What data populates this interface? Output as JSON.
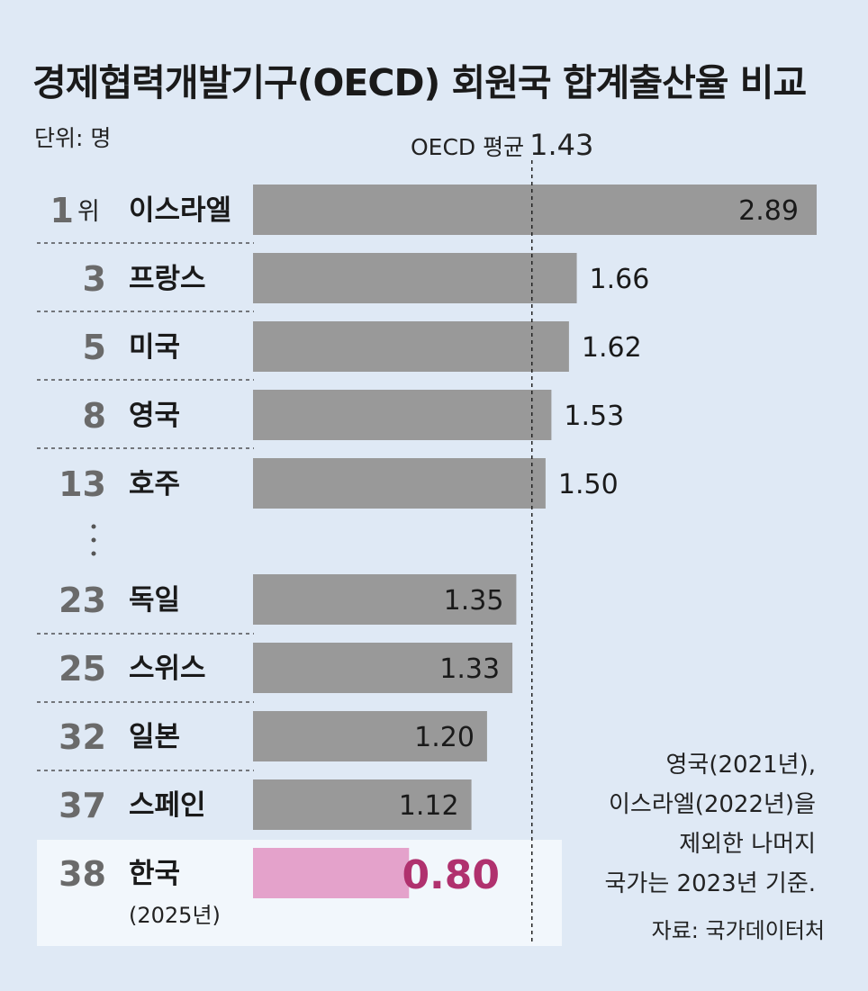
{
  "title": "경제협력개발기구(OECD) 회원국 합계출산율 비교",
  "unit": "단위: 명",
  "average": {
    "label": "OECD 평균",
    "value_text": "1.43"
  },
  "rank_suffix": "위",
  "note_lines": [
    "영국(2021년),",
    "이스라엘(2022년)을",
    "제외한 나머지",
    "국가는 2023년 기준."
  ],
  "source": "자료: 국가데이터처",
  "colors": {
    "bar": "#999999",
    "highlight_bar": "#e4a2cb",
    "highlight_text": "#b0316e",
    "rank": "#6a6a6a",
    "background": "#dfe9f5"
  },
  "chart_data": {
    "type": "bar",
    "orientation": "horizontal",
    "reference_line": {
      "label": "OECD 평균",
      "value": 1.43
    },
    "rows": [
      {
        "rank": "1",
        "country": "이스라엘",
        "value": 2.89,
        "label": "2.89"
      },
      {
        "rank": "3",
        "country": "프랑스",
        "value": 1.66,
        "label": "1.66"
      },
      {
        "rank": "5",
        "country": "미국",
        "value": 1.62,
        "label": "1.62"
      },
      {
        "rank": "8",
        "country": "영국",
        "value": 1.53,
        "label": "1.53"
      },
      {
        "rank": "13",
        "country": "호주",
        "value": 1.5,
        "label": "1.50"
      },
      {
        "rank": "23",
        "country": "독일",
        "value": 1.35,
        "label": "1.35"
      },
      {
        "rank": "25",
        "country": "스위스",
        "value": 1.33,
        "label": "1.33"
      },
      {
        "rank": "32",
        "country": "일본",
        "value": 1.2,
        "label": "1.20"
      },
      {
        "rank": "37",
        "country": "스페인",
        "value": 1.12,
        "label": "1.12"
      },
      {
        "rank": "38",
        "country": "한국",
        "sublabel": "(2025년)",
        "value": 0.8,
        "label": "0.80",
        "highlight": true
      }
    ]
  }
}
